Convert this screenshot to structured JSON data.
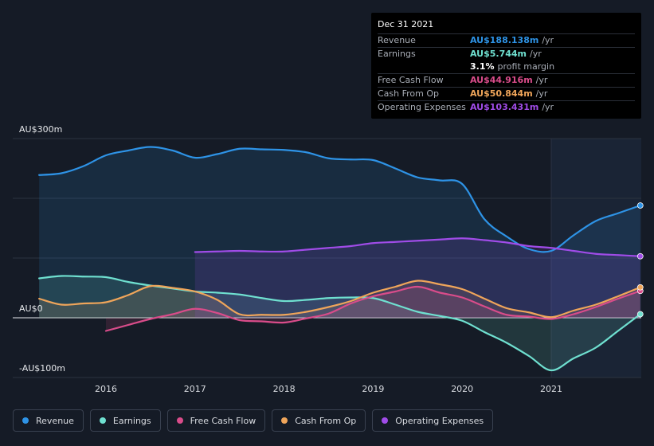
{
  "tooltip": {
    "date": "Dec 31 2021",
    "rows": [
      {
        "label": "Revenue",
        "value": "AU$188.138m",
        "unit": "/yr",
        "color": "#2e93e6"
      },
      {
        "label": "Earnings",
        "value": "AU$5.744m",
        "unit": "/yr",
        "color": "#6fe0d0"
      },
      {
        "label": "",
        "value": "3.1%",
        "unit": "profit margin",
        "color": "#ffffff"
      },
      {
        "label": "Free Cash Flow",
        "value": "AU$44.916m",
        "unit": "/yr",
        "color": "#d94c8a"
      },
      {
        "label": "Cash From Op",
        "value": "AU$50.844m",
        "unit": "/yr",
        "color": "#efa55a"
      },
      {
        "label": "Operating Expenses",
        "value": "AU$103.431m",
        "unit": "/yr",
        "color": "#a04ce8"
      }
    ]
  },
  "legend": [
    {
      "label": "Revenue",
      "color": "#2e93e6"
    },
    {
      "label": "Earnings",
      "color": "#6fe0d0"
    },
    {
      "label": "Free Cash Flow",
      "color": "#d94c8a"
    },
    {
      "label": "Cash From Op",
      "color": "#efa55a"
    },
    {
      "label": "Operating Expenses",
      "color": "#a04ce8"
    }
  ],
  "chart_data": {
    "type": "line",
    "title": "",
    "xlabel": "",
    "ylabel": "",
    "x_ticks": [
      "2016",
      "2017",
      "2018",
      "2019",
      "2020",
      "2021"
    ],
    "y_ticks": [
      {
        "value": 300,
        "label": "AU$300m"
      },
      {
        "value": 0,
        "label": "AU$0"
      },
      {
        "value": -100,
        "label": "-AU$100m"
      }
    ],
    "ylim": [
      -100,
      300
    ],
    "xlim": [
      2015.25,
      2022.0
    ],
    "highlight_from": 2021.0,
    "series": [
      {
        "name": "Revenue",
        "color": "#2e93e6",
        "points": [
          [
            2015.25,
            239
          ],
          [
            2015.5,
            242
          ],
          [
            2015.75,
            254
          ],
          [
            2016.0,
            272
          ],
          [
            2016.25,
            280
          ],
          [
            2016.5,
            286
          ],
          [
            2016.75,
            280
          ],
          [
            2017.0,
            268
          ],
          [
            2017.25,
            274
          ],
          [
            2017.5,
            283
          ],
          [
            2017.75,
            282
          ],
          [
            2018.0,
            281
          ],
          [
            2018.25,
            277
          ],
          [
            2018.5,
            267
          ],
          [
            2018.75,
            265
          ],
          [
            2019.0,
            264
          ],
          [
            2019.25,
            250
          ],
          [
            2019.5,
            235
          ],
          [
            2019.75,
            230
          ],
          [
            2020.0,
            224
          ],
          [
            2020.25,
            165
          ],
          [
            2020.5,
            136
          ],
          [
            2020.75,
            115
          ],
          [
            2021.0,
            112
          ],
          [
            2021.25,
            138
          ],
          [
            2021.5,
            162
          ],
          [
            2021.75,
            175
          ],
          [
            2022.0,
            188
          ]
        ]
      },
      {
        "name": "Earnings",
        "color": "#6fe0d0",
        "points": [
          [
            2015.25,
            66
          ],
          [
            2015.5,
            70
          ],
          [
            2015.75,
            69
          ],
          [
            2016.0,
            68
          ],
          [
            2016.25,
            60
          ],
          [
            2016.5,
            54
          ],
          [
            2016.75,
            49
          ],
          [
            2017.0,
            44
          ],
          [
            2017.25,
            42
          ],
          [
            2017.5,
            39
          ],
          [
            2017.75,
            33
          ],
          [
            2018.0,
            28
          ],
          [
            2018.25,
            30
          ],
          [
            2018.5,
            33
          ],
          [
            2018.75,
            34
          ],
          [
            2019.0,
            33
          ],
          [
            2019.25,
            22
          ],
          [
            2019.5,
            10
          ],
          [
            2019.75,
            3
          ],
          [
            2020.0,
            -5
          ],
          [
            2020.25,
            -24
          ],
          [
            2020.5,
            -42
          ],
          [
            2020.75,
            -64
          ],
          [
            2021.0,
            -88
          ],
          [
            2021.25,
            -68
          ],
          [
            2021.5,
            -50
          ],
          [
            2021.75,
            -22
          ],
          [
            2022.0,
            6
          ]
        ]
      },
      {
        "name": "Free Cash Flow",
        "color": "#d94c8a",
        "points": [
          [
            2016.0,
            -22
          ],
          [
            2016.25,
            -12
          ],
          [
            2016.5,
            -2
          ],
          [
            2016.75,
            6
          ],
          [
            2017.0,
            15
          ],
          [
            2017.25,
            8
          ],
          [
            2017.5,
            -4
          ],
          [
            2017.75,
            -6
          ],
          [
            2018.0,
            -8
          ],
          [
            2018.25,
            -1
          ],
          [
            2018.5,
            7
          ],
          [
            2018.75,
            24
          ],
          [
            2019.0,
            36
          ],
          [
            2019.25,
            44
          ],
          [
            2019.5,
            52
          ],
          [
            2019.75,
            42
          ],
          [
            2020.0,
            34
          ],
          [
            2020.25,
            19
          ],
          [
            2020.5,
            5
          ],
          [
            2020.75,
            2
          ],
          [
            2021.0,
            -2
          ],
          [
            2021.25,
            6
          ],
          [
            2021.5,
            18
          ],
          [
            2021.75,
            32
          ],
          [
            2022.0,
            45
          ]
        ]
      },
      {
        "name": "Cash From Op",
        "color": "#efa55a",
        "points": [
          [
            2015.25,
            32
          ],
          [
            2015.5,
            22
          ],
          [
            2015.75,
            24
          ],
          [
            2016.0,
            26
          ],
          [
            2016.25,
            38
          ],
          [
            2016.5,
            53
          ],
          [
            2016.75,
            50
          ],
          [
            2017.0,
            44
          ],
          [
            2017.25,
            30
          ],
          [
            2017.5,
            6
          ],
          [
            2017.75,
            5
          ],
          [
            2018.0,
            5
          ],
          [
            2018.25,
            10
          ],
          [
            2018.5,
            18
          ],
          [
            2018.75,
            28
          ],
          [
            2019.0,
            42
          ],
          [
            2019.25,
            52
          ],
          [
            2019.5,
            62
          ],
          [
            2019.75,
            56
          ],
          [
            2020.0,
            48
          ],
          [
            2020.25,
            32
          ],
          [
            2020.5,
            16
          ],
          [
            2020.75,
            9
          ],
          [
            2021.0,
            1
          ],
          [
            2021.25,
            12
          ],
          [
            2021.5,
            22
          ],
          [
            2021.75,
            36
          ],
          [
            2022.0,
            51
          ]
        ]
      },
      {
        "name": "Operating Expenses",
        "color": "#a04ce8",
        "points": [
          [
            2017.0,
            110
          ],
          [
            2017.25,
            111
          ],
          [
            2017.5,
            112
          ],
          [
            2017.75,
            111
          ],
          [
            2018.0,
            111
          ],
          [
            2018.25,
            114
          ],
          [
            2018.5,
            117
          ],
          [
            2018.75,
            120
          ],
          [
            2019.0,
            125
          ],
          [
            2019.25,
            127
          ],
          [
            2019.5,
            129
          ],
          [
            2019.75,
            131
          ],
          [
            2020.0,
            133
          ],
          [
            2020.25,
            130
          ],
          [
            2020.5,
            126
          ],
          [
            2020.75,
            120
          ],
          [
            2021.0,
            117
          ],
          [
            2021.25,
            112
          ],
          [
            2021.5,
            107
          ],
          [
            2021.75,
            105
          ],
          [
            2022.0,
            103
          ]
        ]
      }
    ]
  }
}
